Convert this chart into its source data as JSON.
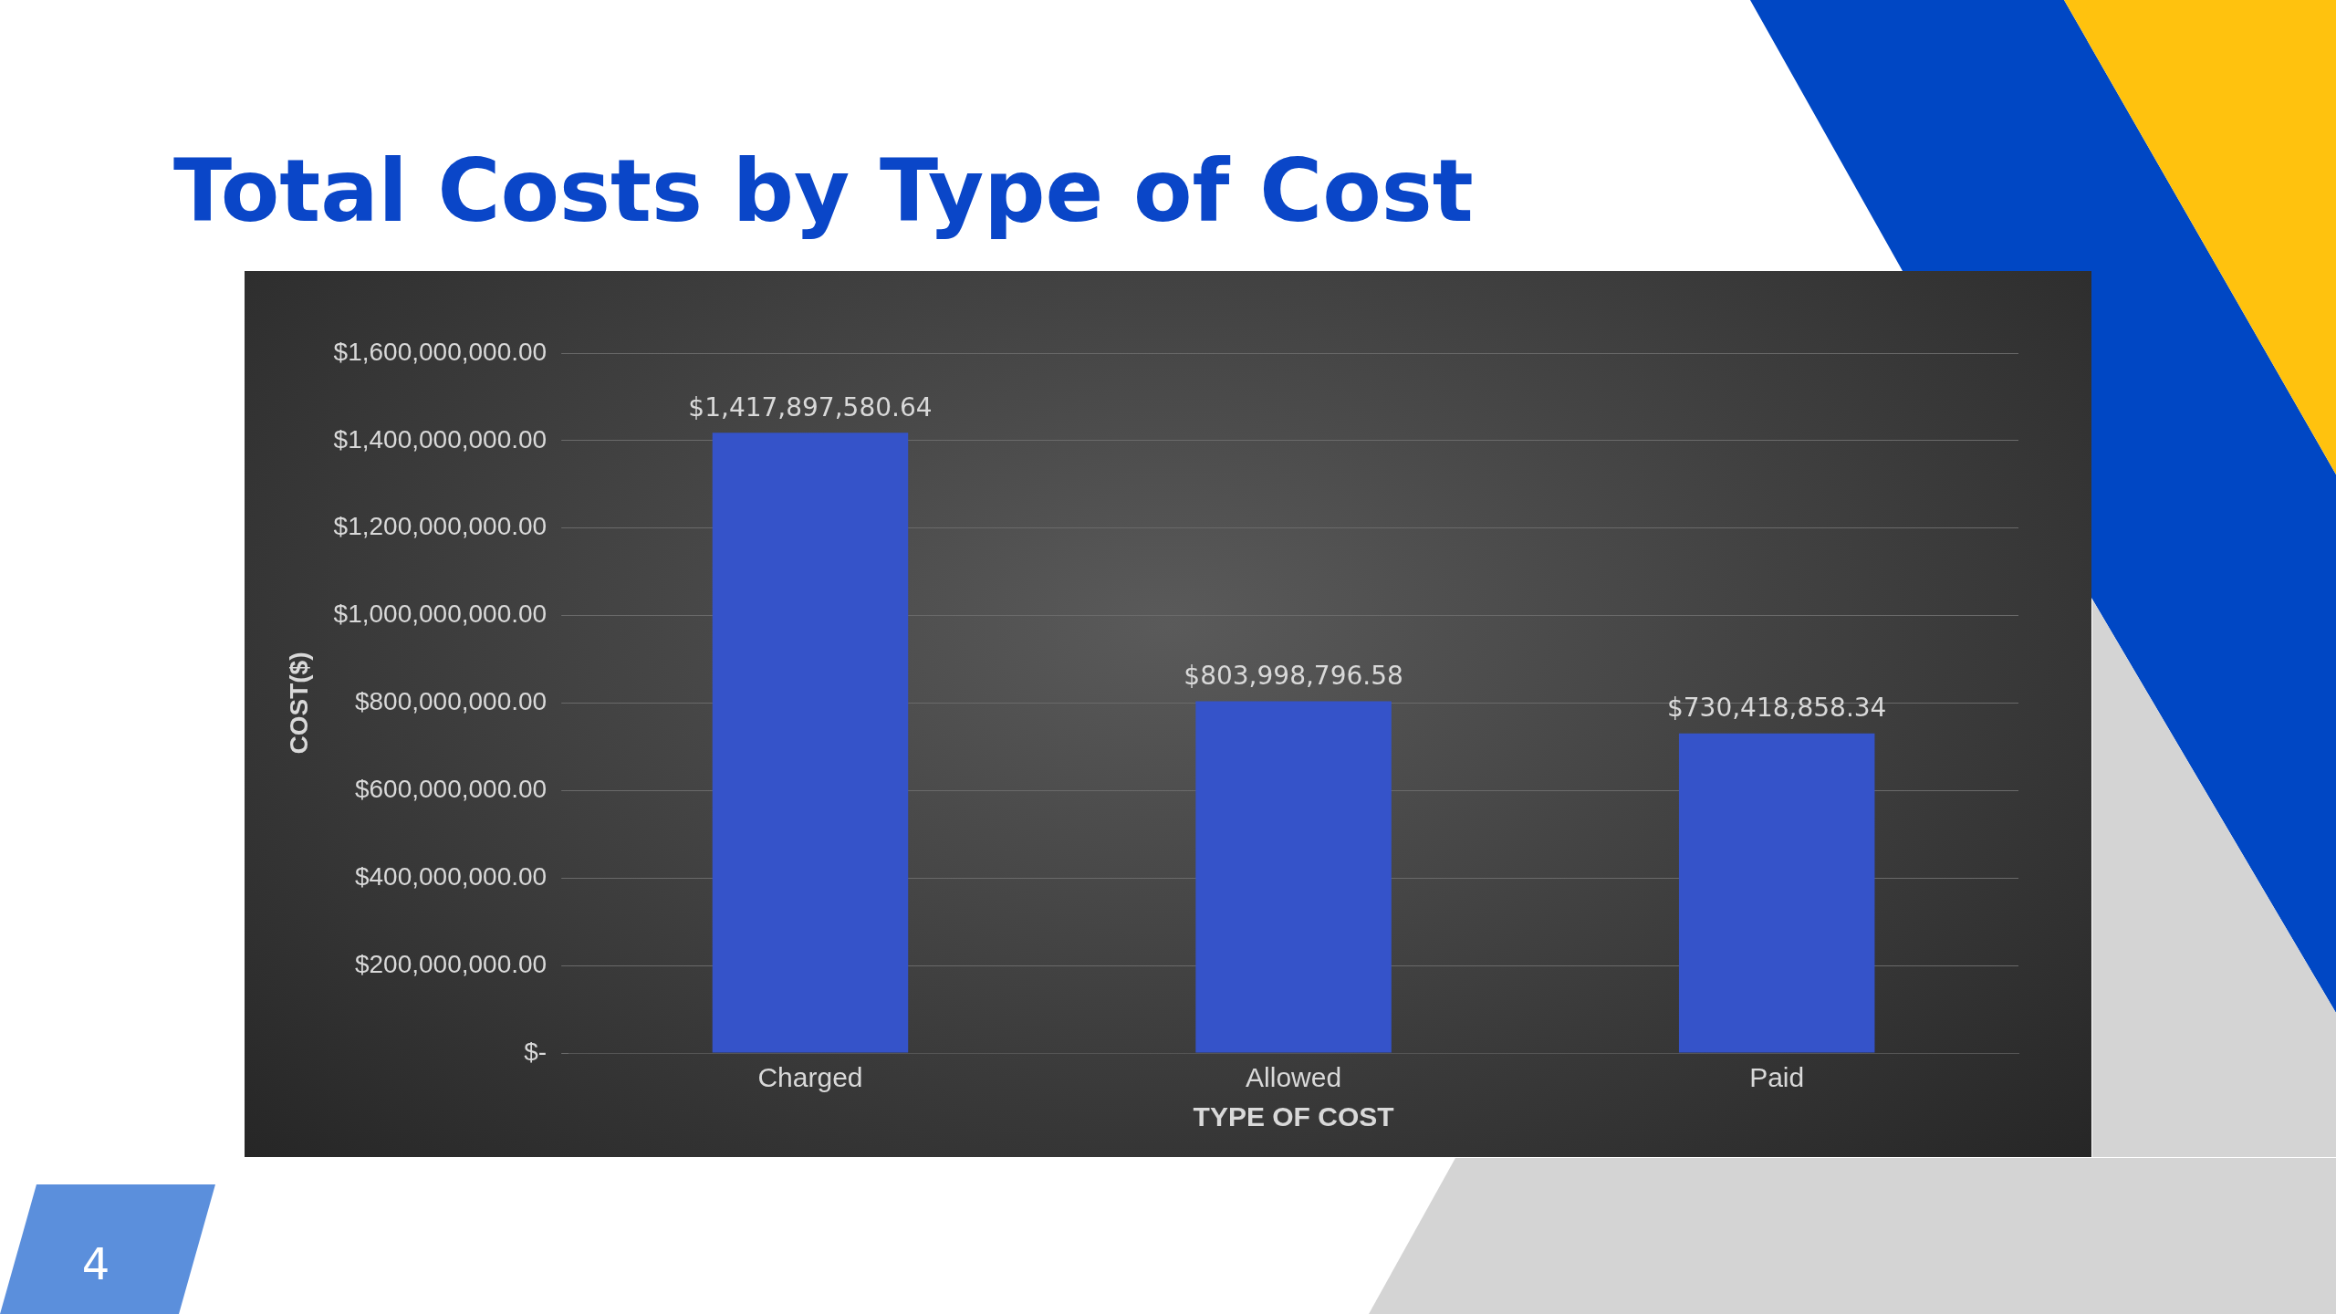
{
  "chart_data": {
    "type": "bar",
    "title": "Total Costs by Type of Cost",
    "xlabel": "TYPE OF COST",
    "ylabel": "COST($)",
    "categories": [
      "Charged",
      "Allowed",
      "Paid"
    ],
    "values": [
      1417897580.64,
      803998796.58,
      730418858.34
    ],
    "value_labels": [
      "$1,417,897,580.64",
      "$803,998,796.58",
      "$730,418,858.34"
    ],
    "color": "#3553c9",
    "ylim": [
      0,
      1600000000
    ],
    "yticks": [
      {
        "value": 0,
        "label": "$-"
      },
      {
        "value": 200000000,
        "label": "$200,000,000.00"
      },
      {
        "value": 400000000,
        "label": "$400,000,000.00"
      },
      {
        "value": 600000000,
        "label": "$600,000,000.00"
      },
      {
        "value": 800000000,
        "label": "$800,000,000.00"
      },
      {
        "value": 1000000000,
        "label": "$1,000,000,000.00"
      },
      {
        "value": 1200000000,
        "label": "$1,200,000,000.00"
      },
      {
        "value": 1400000000,
        "label": "$1,400,000,000.00"
      },
      {
        "value": 1600000000,
        "label": "$1,600,000,000.00"
      }
    ],
    "grid": "y",
    "legend": false,
    "annotations": [
      "4"
    ]
  }
}
